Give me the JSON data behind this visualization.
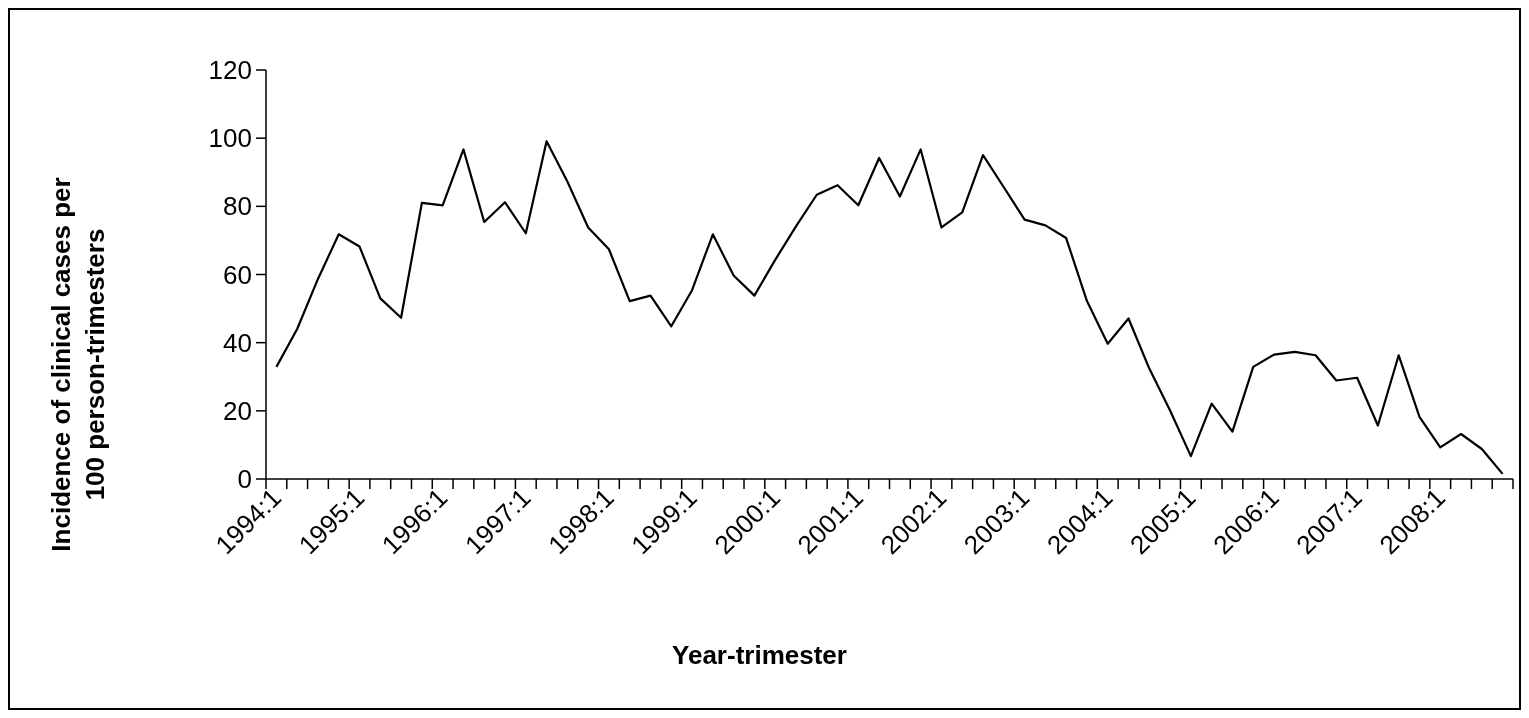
{
  "chart_data": {
    "type": "line",
    "xlabel": "Year-trimester",
    "ylabel": "Incidence of clinical cases per 100 person-trimesters",
    "categories": [
      "1994:1",
      null,
      null,
      null,
      "1995:1",
      null,
      null,
      null,
      "1996:1",
      null,
      null,
      null,
      "1997:1",
      null,
      null,
      null,
      "1998:1",
      null,
      null,
      null,
      "1999:1",
      null,
      null,
      null,
      "2000:1",
      null,
      null,
      null,
      "2001:1",
      null,
      null,
      null,
      "2002:1",
      null,
      null,
      null,
      "2003:1",
      null,
      null,
      null,
      "2004:1",
      null,
      null,
      null,
      "2005:1",
      null,
      null,
      null,
      "2006:1",
      null,
      null,
      null,
      "2007:1",
      null,
      null,
      null,
      "2008:1",
      null,
      null,
      null
    ],
    "series": [
      {
        "color": "#000000",
        "values": [
          32.9,
          44,
          58.7,
          71.8,
          68.2,
          53,
          47.3,
          81,
          80.3,
          96.7,
          75.4,
          81.2,
          72.1,
          99.1,
          87.3,
          73.8,
          67.4,
          52.2,
          53.8,
          44.8,
          55.4,
          71.8,
          59.7,
          53.8,
          64.3,
          74.1,
          83.4,
          86.2,
          80.3,
          94.2,
          82.9,
          96.7,
          73.8,
          78.2,
          95,
          85.6,
          76.1,
          74.4,
          70.7,
          52.2,
          39.7,
          47.1,
          32.4,
          20.1,
          6.7,
          22.1,
          13.9,
          32.9,
          36.5,
          37.3,
          36.3,
          28.9,
          29.7,
          15.7,
          36.3,
          18.2,
          9.3,
          13.2,
          8.8,
          1.5
        ]
      }
    ],
    "ylim": [
      0,
      120
    ],
    "yticks": [
      0,
      20,
      40,
      60,
      80,
      100,
      120
    ],
    "grid": false,
    "marker": "none",
    "line_style": "solid"
  }
}
